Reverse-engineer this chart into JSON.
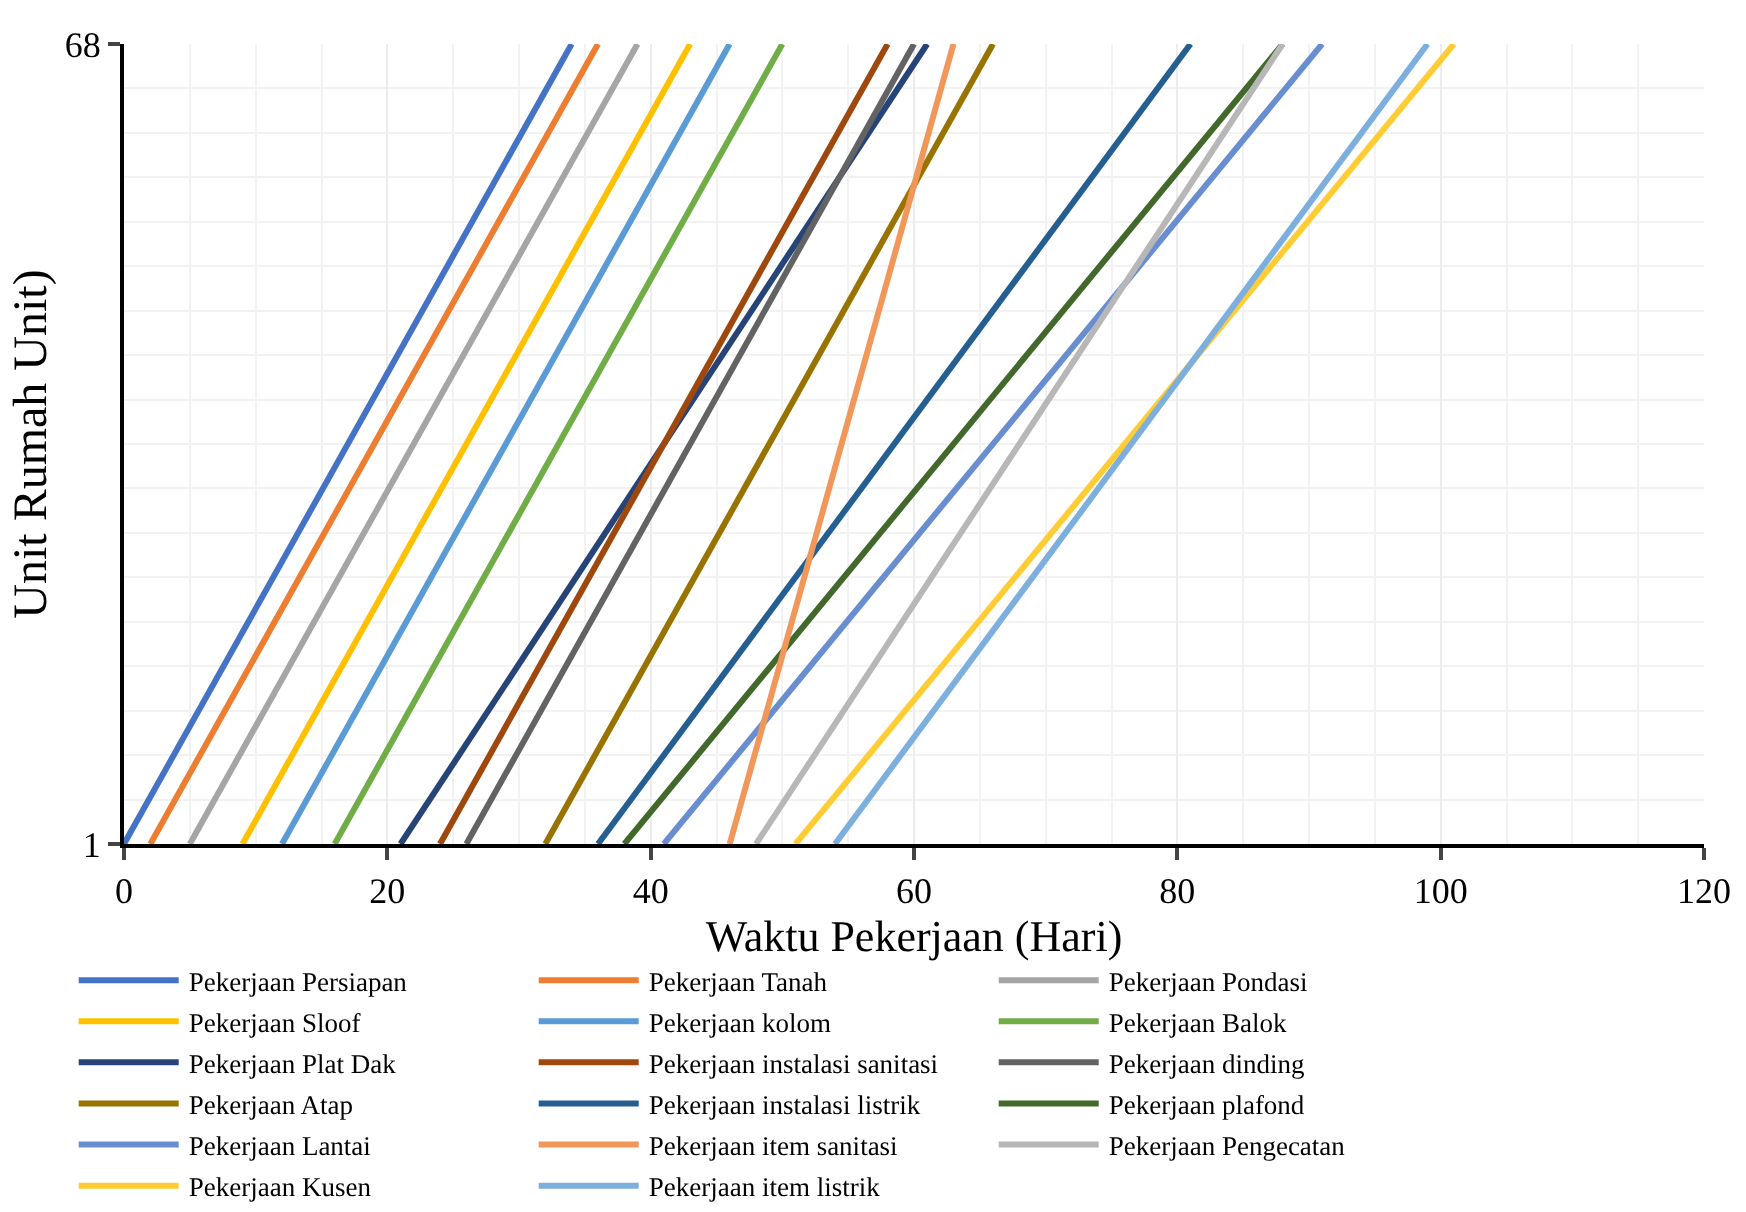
{
  "chart_data": {
    "type": "line",
    "xlabel": "Waktu Pekerjaan (Hari)",
    "ylabel": "Unit Rumah Unit)",
    "xlim": [
      0,
      120
    ],
    "xticks": [
      0,
      20,
      40,
      60,
      80,
      100,
      120
    ],
    "ylim": [
      1,
      68
    ],
    "yticks": [
      1,
      68
    ],
    "grid": true,
    "legend": "bottom",
    "marker": "none",
    "line_style": "solid",
    "series": [
      {
        "name": "Pekerjaan Persiapan",
        "color": "#4472c4",
        "x": [
          0,
          34
        ],
        "values": [
          1,
          68
        ]
      },
      {
        "name": "Pekerjaan Tanah",
        "color": "#ed7d31",
        "x": [
          2,
          36
        ],
        "values": [
          1,
          68
        ]
      },
      {
        "name": "Pekerjaan Pondasi",
        "color": "#a5a5a5",
        "x": [
          5,
          39
        ],
        "values": [
          1,
          68
        ]
      },
      {
        "name": "Pekerjaan Sloof",
        "color": "#ffc000",
        "x": [
          9,
          43
        ],
        "values": [
          1,
          68
        ]
      },
      {
        "name": "Pekerjaan kolom",
        "color": "#5b9bd5",
        "x": [
          12,
          46
        ],
        "values": [
          1,
          68
        ]
      },
      {
        "name": "Pekerjaan Balok",
        "color": "#70ad47",
        "x": [
          16,
          50
        ],
        "values": [
          1,
          68
        ]
      },
      {
        "name": "Pekerjaan Plat Dak",
        "color": "#264478",
        "x": [
          21,
          61
        ],
        "values": [
          1,
          68
        ]
      },
      {
        "name": "Pekerjaan instalasi sanitasi",
        "color": "#9e480e",
        "x": [
          24,
          58
        ],
        "values": [
          1,
          68
        ]
      },
      {
        "name": "Pekerjaan dinding",
        "color": "#636363",
        "x": [
          26,
          60
        ],
        "values": [
          1,
          68
        ]
      },
      {
        "name": "Pekerjaan Atap",
        "color": "#997300",
        "x": [
          32,
          66
        ],
        "values": [
          1,
          68
        ]
      },
      {
        "name": "Pekerjaan instalasi listrik",
        "color": "#255e91",
        "x": [
          36,
          81
        ],
        "values": [
          1,
          68
        ]
      },
      {
        "name": "Pekerjaan plafond",
        "color": "#43682b",
        "x": [
          38,
          88
        ],
        "values": [
          1,
          68
        ]
      },
      {
        "name": "Pekerjaan Lantai",
        "color": "#698ed0",
        "x": [
          41,
          91
        ],
        "values": [
          1,
          68
        ]
      },
      {
        "name": "Pekerjaan item sanitasi",
        "color": "#f1975a",
        "x": [
          46,
          63
        ],
        "values": [
          1,
          68
        ]
      },
      {
        "name": "Pekerjaan Pengecatan",
        "color": "#b7b7b7",
        "x": [
          48,
          88
        ],
        "values": [
          1,
          68
        ]
      },
      {
        "name": "Pekerjaan Kusen",
        "color": "#ffcd33",
        "x": [
          51,
          101
        ],
        "values": [
          1,
          68
        ]
      },
      {
        "name": "Pekerjaan item listrik",
        "color": "#7cafdd",
        "x": [
          54,
          99
        ],
        "values": [
          1,
          68
        ]
      }
    ]
  }
}
